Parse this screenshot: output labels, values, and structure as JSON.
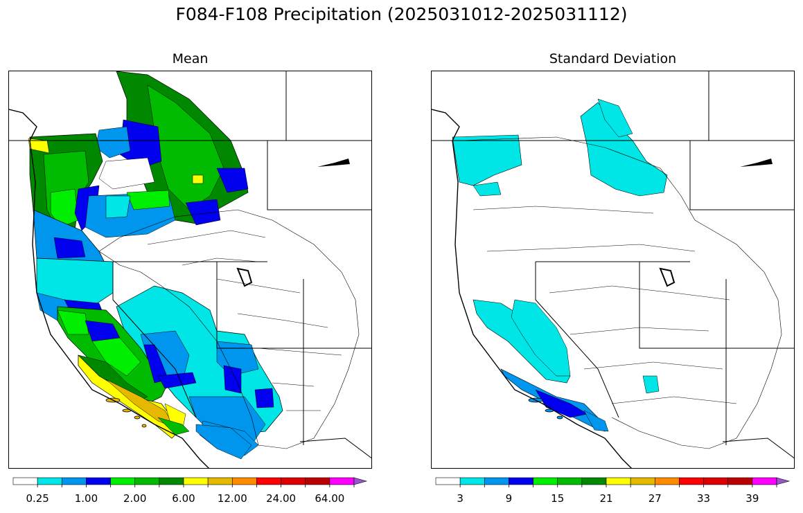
{
  "figure": {
    "title": "F084-F108 Precipitation (2025031012-2025031112)"
  },
  "panels": [
    {
      "title": "Mean",
      "colorbar": {
        "colors": [
          "#ffffff",
          "#00e5e5",
          "#0096ee",
          "#0000ee",
          "#00ee00",
          "#00bb00",
          "#008800",
          "#ffff00",
          "#e6b800",
          "#ff8c00",
          "#ff0000",
          "#dd0000",
          "#bb0000",
          "#ff00ff",
          "#9955cc"
        ],
        "extend": "max",
        "tick_labels": [
          "0.25",
          "1.00",
          "2.00",
          "6.00",
          "12.00",
          "24.00",
          "64.00"
        ]
      }
    },
    {
      "title": "Standard Deviation",
      "colorbar": {
        "colors": [
          "#ffffff",
          "#00e5e5",
          "#0096ee",
          "#0000ee",
          "#00ee00",
          "#00bb00",
          "#008800",
          "#ffff00",
          "#e6b800",
          "#ff8c00",
          "#ff0000",
          "#dd0000",
          "#bb0000",
          "#ff00ff",
          "#9955cc"
        ],
        "extend": "max",
        "tick_labels": [
          "3",
          "9",
          "15",
          "21",
          "27",
          "33",
          "39"
        ]
      }
    }
  ]
}
